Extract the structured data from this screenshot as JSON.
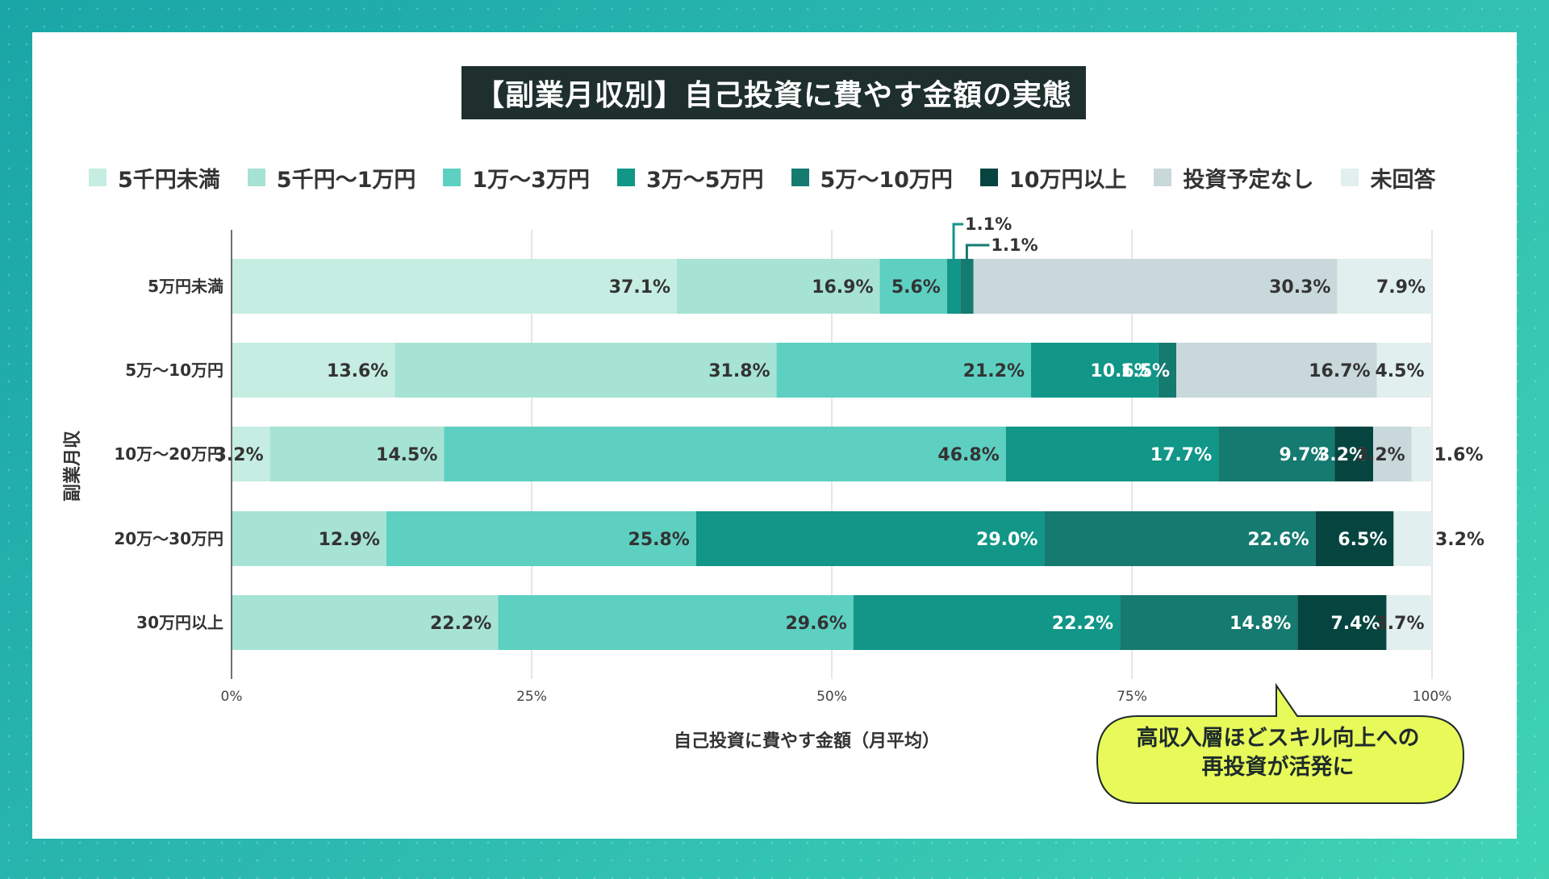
{
  "title": "【副業月収別】自己投資に費やす金額の実態",
  "legend": [
    {
      "label": "5千円未満",
      "color": "#c6ede2"
    },
    {
      "label": "5千円～1万円",
      "color": "#a6e3d4"
    },
    {
      "label": "1万～3万円",
      "color": "#5dd0c2"
    },
    {
      "label": "3万～5万円",
      "color": "#119688"
    },
    {
      "label": "5万～10万円",
      "color": "#157a70"
    },
    {
      "label": "10万円以上",
      "color": "#06453f"
    },
    {
      "label": "投資予定なし",
      "color": "#c9d8da"
    },
    {
      "label": "未回答",
      "color": "#e1efee"
    }
  ],
  "callout": {
    "line1": "高収入層ほどスキル向上への",
    "line2": "再投資が活発に"
  },
  "chart_data": {
    "type": "bar",
    "orientation": "horizontal-stacked-100",
    "xlabel": "自己投資に費やす金額（月平均）",
    "ylabel": "副業月収",
    "xlim": [
      0,
      100
    ],
    "xticks": [
      "0%",
      "25%",
      "50%",
      "75%",
      "100%"
    ],
    "grid": true,
    "legend_position": "top",
    "categories": [
      "5万円未満",
      "5万～10万円",
      "10万～20万円",
      "20万～30万円",
      "30万円以上"
    ],
    "series": [
      {
        "name": "5千円未満",
        "values": [
          37.1,
          13.6,
          3.2,
          0,
          0
        ]
      },
      {
        "name": "5千円～1万円",
        "values": [
          16.9,
          31.8,
          14.5,
          12.9,
          22.2
        ]
      },
      {
        "name": "1万～3万円",
        "values": [
          5.6,
          21.2,
          46.8,
          25.8,
          29.6
        ]
      },
      {
        "name": "3万～5万円",
        "values": [
          1.1,
          10.6,
          17.7,
          29.0,
          22.2
        ]
      },
      {
        "name": "5万～10万円",
        "values": [
          1.1,
          1.5,
          9.7,
          22.6,
          14.8
        ]
      },
      {
        "name": "10万円以上",
        "values": [
          0,
          0,
          3.2,
          6.5,
          7.4
        ]
      },
      {
        "name": "投資予定なし",
        "values": [
          30.3,
          16.7,
          3.2,
          0,
          0
        ]
      },
      {
        "name": "未回答",
        "values": [
          7.9,
          4.5,
          1.6,
          3.2,
          3.7
        ]
      }
    ],
    "segment_labels": [
      [
        "37.1%",
        "16.9%",
        "5.6%",
        "1.1%",
        "1.1%",
        "",
        "30.3%",
        "7.9%"
      ],
      [
        "13.6%",
        "31.8%",
        "21.2%",
        "10.6%",
        "1.5%",
        "",
        "16.7%",
        "4.5%"
      ],
      [
        "3.2%",
        "14.5%",
        "46.8%",
        "17.7%",
        "9.7%",
        "3.2%",
        "3.2%",
        "1.6%"
      ],
      [
        "",
        "12.9%",
        "25.8%",
        "29.0%",
        "22.6%",
        "6.5%",
        "",
        "3.2%"
      ],
      [
        "",
        "22.2%",
        "29.6%",
        "22.2%",
        "14.8%",
        "7.4%",
        "",
        "3.7%"
      ]
    ]
  }
}
